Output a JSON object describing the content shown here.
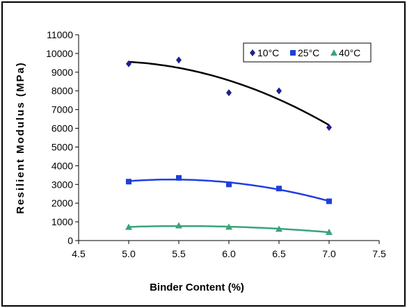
{
  "chart_data": {
    "type": "scatter",
    "title": "",
    "xlabel": "Binder Content (%)",
    "ylabel": "Resilient Modulus (MPa)",
    "xlim": [
      4.5,
      7.5
    ],
    "ylim": [
      0,
      11000
    ],
    "xticks": [
      4.5,
      5.0,
      5.5,
      6.0,
      6.5,
      7.0,
      7.5
    ],
    "xtick_labels": [
      "4.5",
      "5.0",
      "5.5",
      "6.0",
      "6.5",
      "7.0",
      "7.5"
    ],
    "yticks": [
      0,
      1000,
      2000,
      3000,
      4000,
      5000,
      6000,
      7000,
      8000,
      9000,
      10000,
      11000
    ],
    "ytick_labels": [
      "0",
      "1000",
      "2000",
      "3000",
      "4000",
      "5000",
      "6000",
      "7000",
      "8000",
      "9000",
      "10000",
      "11000"
    ],
    "grid": false,
    "legend_position": "top-right",
    "trendline": "polynomial",
    "series": [
      {
        "name": "10°C",
        "marker": "diamond",
        "color": "#1f1f8f",
        "trend_color": "#000000",
        "x": [
          5.0,
          5.5,
          6.0,
          6.5,
          7.0
        ],
        "y": [
          9450,
          9650,
          7900,
          8000,
          6050
        ]
      },
      {
        "name": "25°C",
        "marker": "square",
        "color": "#1f3fd8",
        "trend_color": "#1f3fe0",
        "x": [
          5.0,
          5.5,
          6.0,
          6.5,
          7.0
        ],
        "y": [
          3150,
          3350,
          3000,
          2780,
          2100
        ]
      },
      {
        "name": "40°C",
        "marker": "triangle",
        "color": "#3aa37a",
        "trend_color": "#3aa37a",
        "x": [
          5.0,
          5.5,
          6.0,
          6.5,
          7.0
        ],
        "y": [
          720,
          800,
          730,
          620,
          450
        ]
      }
    ]
  }
}
